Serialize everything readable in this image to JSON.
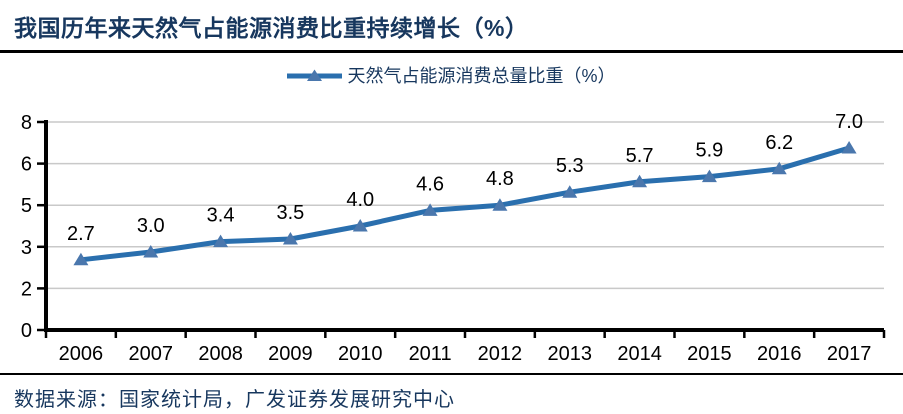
{
  "header": {
    "title": "我国历年来天然气占能源消费比重持续增长（%）"
  },
  "legend": {
    "label": "天然气占能源消费总量比重（%）"
  },
  "footer": {
    "source": "数据来源：国家统计局，广发证券发展研究中心"
  },
  "colors": {
    "title": "#17375e",
    "line": "#2a6fae",
    "marker": "#4a77ad",
    "grid": "#c9c9c9",
    "axis": "#000000",
    "tick_text": "#000000",
    "data_label_text": "#000000"
  },
  "chart_data": {
    "type": "line",
    "title": "我国历年来天然气占能源消费比重持续增长（%）",
    "series": [
      {
        "name": "天然气占能源消费总量比重（%）",
        "values": [
          2.7,
          3.0,
          3.4,
          3.5,
          4.0,
          4.6,
          4.8,
          5.3,
          5.7,
          5.9,
          6.2,
          7.0
        ]
      }
    ],
    "categories": [
      "2006",
      "2007",
      "2008",
      "2009",
      "2010",
      "2011",
      "2012",
      "2013",
      "2014",
      "2015",
      "2016",
      "2017"
    ],
    "xlabel": "",
    "ylabel": "",
    "ylim": [
      0,
      8
    ],
    "yticks": [
      {
        "v": 0,
        "label": "0"
      },
      {
        "v": 1.6,
        "label": "2"
      },
      {
        "v": 3.2,
        "label": "3"
      },
      {
        "v": 4.8,
        "label": "5"
      },
      {
        "v": 6.4,
        "label": "6"
      },
      {
        "v": 8,
        "label": "8"
      }
    ],
    "grid": "horizontal",
    "marker": "triangle",
    "data_labels": true,
    "legend_position": "top",
    "source_note": "数据来源：国家统计局，广发证券发展研究中心"
  }
}
